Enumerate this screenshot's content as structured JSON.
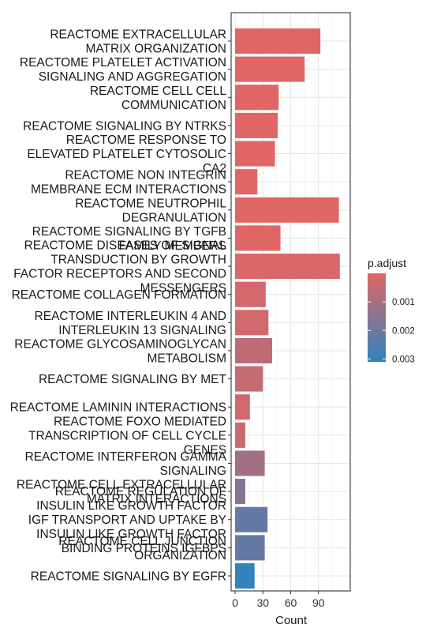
{
  "chart_data": {
    "type": "bar",
    "orientation": "horizontal",
    "xlabel": "Count",
    "xlim": [
      0,
      120
    ],
    "xticks": [
      0,
      30,
      60,
      90
    ],
    "grid": true,
    "legend_placement": "right",
    "legend": {
      "title": "p.adjust",
      "ticks": [
        {
          "value": 0.001,
          "label": "0.001"
        },
        {
          "value": 0.002,
          "label": "0.002"
        },
        {
          "value": 0.003,
          "label": "0.003"
        }
      ],
      "range": [
        0.0,
        0.0031
      ],
      "color_low": "#E06666",
      "color_high": "#3182BD"
    },
    "bars": [
      {
        "lines": [
          "REACTOME EXTRACELLULAR",
          "MATRIX ORGANIZATION"
        ],
        "count": 92,
        "p_adjust": 0.0
      },
      {
        "lines": [
          "REACTOME PLATELET ACTIVATION",
          "SIGNALING AND AGGREGATION"
        ],
        "count": 75,
        "p_adjust": 0.0
      },
      {
        "lines": [
          "REACTOME CELL CELL",
          "COMMUNICATION"
        ],
        "count": 47,
        "p_adjust": 0.0
      },
      {
        "lines": [
          "REACTOME SIGNALING BY NTRKS"
        ],
        "count": 46,
        "p_adjust": 0.0
      },
      {
        "lines": [
          "REACTOME RESPONSE TO",
          "ELEVATED PLATELET CYTOSOLIC",
          "CA2"
        ],
        "count": 43,
        "p_adjust": 0.0
      },
      {
        "lines": [
          "REACTOME NON INTEGRIN",
          "MEMBRANE ECM INTERACTIONS"
        ],
        "count": 24,
        "p_adjust": 0.0
      },
      {
        "lines": [
          "REACTOME NEUTROPHIL",
          "DEGRANULATION"
        ],
        "count": 112,
        "p_adjust": 0.0
      },
      {
        "lines": [
          "REACTOME SIGNALING BY TGFB",
          "FAMILY MEMBERS"
        ],
        "count": 49,
        "p_adjust": 0.0
      },
      {
        "lines": [
          "REACTOME DISEASES OF SIGNAL",
          "TRANSDUCTION BY GROWTH",
          "FACTOR RECEPTORS AND SECOND",
          "MESSENGERS"
        ],
        "count": 113,
        "p_adjust": 0.0001
      },
      {
        "lines": [
          "REACTOME COLLAGEN FORMATION"
        ],
        "count": 33,
        "p_adjust": 0.0002
      },
      {
        "lines": [
          "REACTOME INTERLEUKIN 4 AND",
          "INTERLEUKIN 13 SIGNALING"
        ],
        "count": 36,
        "p_adjust": 0.0003
      },
      {
        "lines": [
          "REACTOME GLYCOSAMINOGLYCAN",
          "METABOLISM"
        ],
        "count": 40,
        "p_adjust": 0.0006
      },
      {
        "lines": [
          "REACTOME SIGNALING BY MET"
        ],
        "count": 30,
        "p_adjust": 0.0005
      },
      {
        "lines": [
          "REACTOME LAMININ INTERACTIONS"
        ],
        "count": 16,
        "p_adjust": 0.0003
      },
      {
        "lines": [
          "REACTOME FOXO MEDIATED",
          "TRANSCRIPTION OF CELL CYCLE",
          "GENES"
        ],
        "count": 11,
        "p_adjust": 0.0004
      },
      {
        "lines": [
          "REACTOME INTERFERON GAMMA",
          "SIGNALING"
        ],
        "count": 32,
        "p_adjust": 0.0011
      },
      {
        "lines": [
          "REACTOME CELL EXTRACELLULAR",
          "MATRIX INTERACTIONS"
        ],
        "count": 11,
        "p_adjust": 0.0016
      },
      {
        "lines": [
          "REACTOME REGULATION OF",
          "INSULIN LIKE GROWTH FACTOR",
          "IGF TRANSPORT AND UPTAKE BY",
          "INSULIN LIKE GROWTH FACTOR",
          "BINDING PROTEINS IGFBPS"
        ],
        "count": 35,
        "p_adjust": 0.0022
      },
      {
        "lines": [
          "REACTOME CELL JUNCTION",
          "ORGANIZATION"
        ],
        "count": 32,
        "p_adjust": 0.0022
      },
      {
        "lines": [
          "REACTOME SIGNALING BY EGFR"
        ],
        "count": 21,
        "p_adjust": 0.0031
      }
    ]
  }
}
